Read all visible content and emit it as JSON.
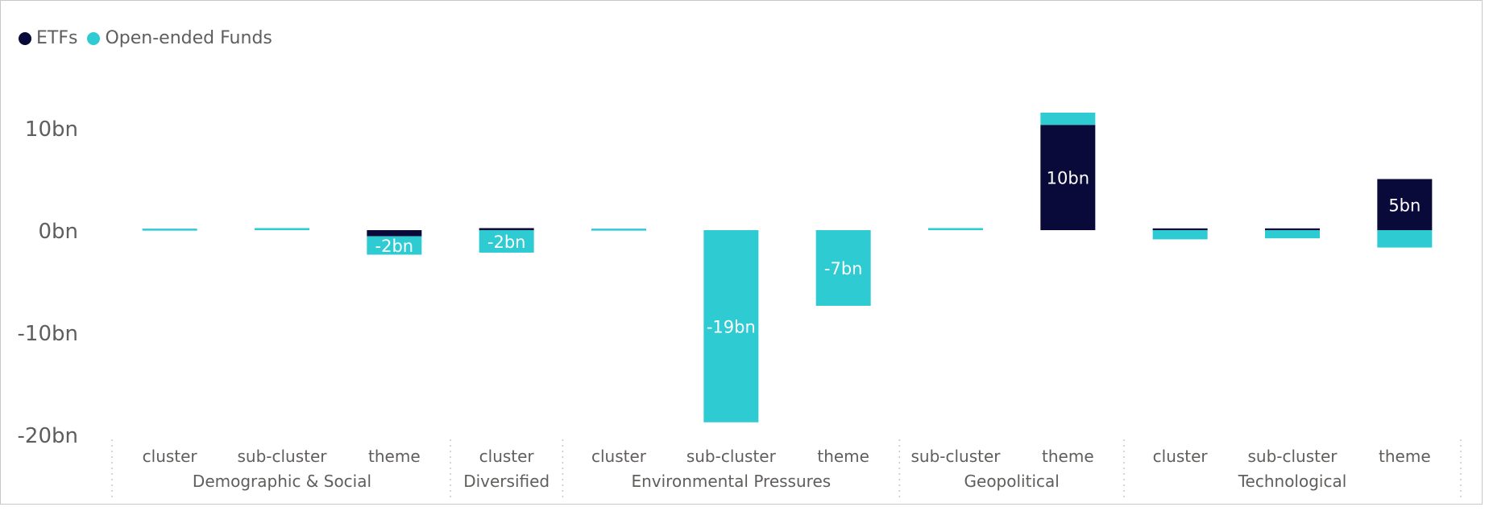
{
  "legend": [
    {
      "name": "ETFs",
      "color": "#0a0a3a"
    },
    {
      "name": "Open-ended Funds",
      "color": "#2ecbd3"
    }
  ],
  "chart_data": {
    "type": "bar",
    "stacked": true,
    "unit_suffix": "bn",
    "ylim": [
      -20,
      12
    ],
    "yticks": [
      {
        "value": 10,
        "label": "10bn"
      },
      {
        "value": 0,
        "label": "0bn"
      },
      {
        "value": -10,
        "label": "-10bn"
      },
      {
        "value": -20,
        "label": "-20bn"
      }
    ],
    "grid": false,
    "legend_position": "top-left",
    "groups": [
      {
        "name": "Demographic & Social",
        "categories": [
          "cluster",
          "sub-cluster",
          "theme"
        ]
      },
      {
        "name": "Diversified",
        "categories": [
          "cluster"
        ]
      },
      {
        "name": "Environmental Pressures",
        "categories": [
          "cluster",
          "sub-cluster",
          "theme"
        ]
      },
      {
        "name": "Geopolitical",
        "categories": [
          "sub-cluster",
          "theme"
        ]
      },
      {
        "name": "Technological",
        "categories": [
          "cluster",
          "sub-cluster",
          "theme"
        ]
      }
    ],
    "series": [
      {
        "name": "ETFs",
        "color": "#0a0a3a",
        "values": [
          0,
          0,
          -0.6,
          0.2,
          0,
          0,
          0,
          0,
          10.3,
          0.15,
          0.15,
          5.0
        ]
      },
      {
        "name": "Open-ended Funds",
        "color": "#2ecbd3",
        "values": [
          0.1,
          0.2,
          -1.8,
          -2.2,
          0.1,
          -18.8,
          -7.4,
          0.2,
          1.2,
          -0.9,
          -0.8,
          -1.7
        ]
      }
    ],
    "data_labels": [
      {
        "index": 2,
        "series": "Open-ended Funds",
        "text": "-2bn"
      },
      {
        "index": 3,
        "series": "Open-ended Funds",
        "text": "-2bn"
      },
      {
        "index": 5,
        "series": "Open-ended Funds",
        "text": "-19bn"
      },
      {
        "index": 6,
        "series": "Open-ended Funds",
        "text": "-7bn"
      },
      {
        "index": 8,
        "series": "ETFs",
        "text": "10bn"
      },
      {
        "index": 11,
        "series": "ETFs",
        "text": "5bn"
      }
    ]
  }
}
